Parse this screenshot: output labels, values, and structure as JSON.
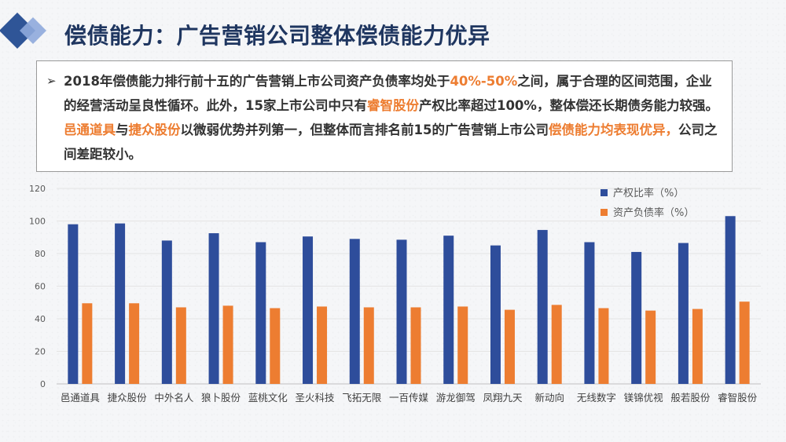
{
  "title": "偿债能力：广告营销公司整体偿债能力优异",
  "summary": {
    "parts": [
      {
        "t": "2018年偿债能力排行前十五的广告营销上市公司资产负债率均处于",
        "hl": false
      },
      {
        "t": "40%-50%",
        "hl": true
      },
      {
        "t": "之间，属于合理的区间范围，企业的经营活动呈良性循环。此外，15家上市公司中只有",
        "hl": false
      },
      {
        "t": "睿智股份",
        "hl": true
      },
      {
        "t": "产权比率超过100%，整体偿还长期债务能力较强。",
        "hl": false
      },
      {
        "t": "邑通道具",
        "hl": true
      },
      {
        "t": "与",
        "hl": false
      },
      {
        "t": "捷众股份",
        "hl": true
      },
      {
        "t": "以微弱优势并列第一，但整体而言排名前15的广告营销上市公司",
        "hl": false
      },
      {
        "t": "偿债能力均表现优异，",
        "hl": true
      },
      {
        "t": "公司之间差距较小。",
        "hl": false
      }
    ]
  },
  "colors": {
    "series1": "#2e4d9b",
    "series2": "#ed7d31",
    "highlight": "#ed7d31",
    "title": "#1f3660",
    "logo_dark": "#2f5597",
    "logo_light": "#8faadc"
  },
  "chart_data": {
    "type": "bar",
    "categories": [
      "邑通道具",
      "捷众股份",
      "中外名人",
      "狼卜股份",
      "蓝桃文化",
      "圣火科技",
      "飞拓无限",
      "一百传媒",
      "游龙御驾",
      "凤翔九天",
      "新动向",
      "无线数字",
      "镁锦优视",
      "般若股份",
      "睿智股份"
    ],
    "series": [
      {
        "name": "产权比率（%）",
        "values": [
          98,
          98.5,
          88,
          92.5,
          87,
          90.5,
          89,
          88.5,
          91,
          85,
          94.5,
          87,
          81,
          86.5,
          103
        ]
      },
      {
        "name": "资产负债率（%）",
        "values": [
          49.5,
          49.5,
          47,
          48,
          46.5,
          47.5,
          47,
          47,
          47.5,
          45.5,
          48.5,
          46.5,
          45,
          46,
          50.5
        ]
      }
    ],
    "ylim": [
      0,
      120
    ],
    "yticks": [
      0,
      20,
      40,
      60,
      80,
      100,
      120
    ],
    "grid": true,
    "legend": "top-right"
  }
}
